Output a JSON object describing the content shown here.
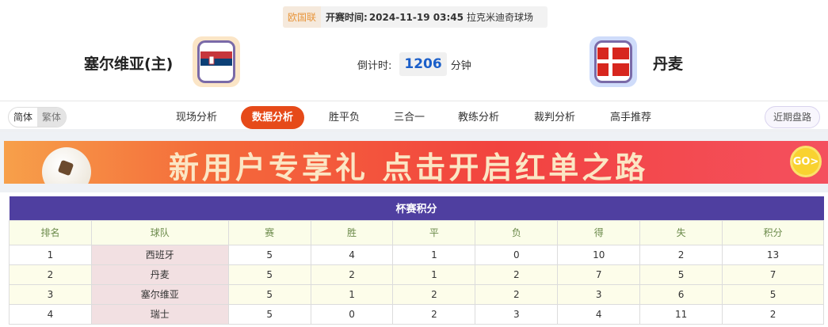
{
  "match": {
    "league": "欧国联",
    "time_label": "开赛时间:",
    "time": "2024-11-19 03:45",
    "venue": "拉克米迪奇球场"
  },
  "home": {
    "name": "塞尔维亚(主)",
    "flag": "serbia-flag"
  },
  "away": {
    "name": "丹麦",
    "flag": "denmark-flag"
  },
  "countdown": {
    "label": "倒计时:",
    "value": "1206",
    "unit": "分钟"
  },
  "lang": {
    "simplified": "简体",
    "traditional": "繁体"
  },
  "tabs": [
    "现场分析",
    "数据分析",
    "胜平负",
    "三合一",
    "教练分析",
    "裁判分析",
    "高手推荐"
  ],
  "active_tab": "数据分析",
  "recent_button": "近期盘路",
  "banner": {
    "text": "新用户专享礼 点击开启红单之路",
    "go": "GO>"
  },
  "colors": {
    "accent": "#e64a19",
    "table_header": "#4f3fa0",
    "countdown": "#1b5fc9"
  },
  "standings": {
    "title": "杯赛积分",
    "columns": [
      "排名",
      "球队",
      "赛",
      "胜",
      "平",
      "负",
      "得",
      "失",
      "积分"
    ],
    "rows": [
      [
        "1",
        "西班牙",
        "5",
        "4",
        "1",
        "0",
        "10",
        "2",
        "13"
      ],
      [
        "2",
        "丹麦",
        "5",
        "2",
        "1",
        "2",
        "7",
        "5",
        "7"
      ],
      [
        "3",
        "塞尔维亚",
        "5",
        "1",
        "2",
        "2",
        "3",
        "6",
        "5"
      ],
      [
        "4",
        "瑞士",
        "5",
        "0",
        "2",
        "3",
        "4",
        "11",
        "2"
      ]
    ]
  }
}
